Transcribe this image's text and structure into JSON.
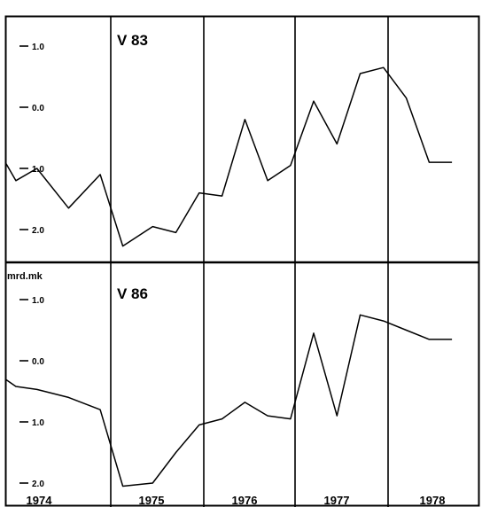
{
  "chart_data": [
    {
      "type": "line",
      "title": "V 83",
      "ylabel": "",
      "y_tick_labels": [
        "1.0",
        "0.0",
        "1.0",
        "2.0"
      ],
      "y_tick_values": [
        1.0,
        0.0,
        -1.0,
        -2.0
      ],
      "ylim": [
        -2.4,
        1.45
      ],
      "x": [
        0.0,
        0.1,
        0.3,
        0.6,
        0.9,
        1.13,
        1.45,
        1.7,
        1.95,
        2.2,
        2.45,
        2.7,
        2.95,
        3.2,
        3.45,
        3.7,
        3.95,
        4.2,
        4.45,
        4.7
      ],
      "y": [
        -0.9,
        -1.2,
        -1.0,
        -1.65,
        -1.1,
        -2.27,
        -1.95,
        -2.05,
        -1.4,
        -1.45,
        -0.2,
        -1.2,
        -0.95,
        0.1,
        -0.6,
        0.55,
        0.65,
        0.15,
        -0.9,
        -0.9
      ],
      "grid": "vertical year dividers",
      "legend": "none"
    },
    {
      "type": "line",
      "title": "V 86",
      "ylabel": "mrd.mk",
      "y_tick_labels": [
        "1.0",
        "0.0",
        "1.0",
        "2.0"
      ],
      "y_tick_values": [
        1.0,
        0.0,
        -1.0,
        -2.0
      ],
      "ylim": [
        -2.4,
        1.45
      ],
      "x": [
        0.0,
        0.1,
        0.3,
        0.6,
        0.9,
        1.13,
        1.45,
        1.7,
        1.95,
        2.2,
        2.45,
        2.7,
        2.95,
        3.2,
        3.45,
        3.7,
        3.95,
        4.2,
        4.45,
        4.7
      ],
      "y": [
        -0.3,
        -0.42,
        -0.47,
        -0.6,
        -0.8,
        -2.05,
        -2.0,
        -1.5,
        -1.05,
        -0.95,
        -0.68,
        -0.9,
        -0.95,
        0.45,
        -0.9,
        0.75,
        0.65,
        0.5,
        0.35,
        0.35
      ],
      "grid": "vertical year dividers",
      "legend": "none"
    }
  ],
  "x_axis": {
    "categories": [
      "1974",
      "1975",
      "1976",
      "1977",
      "1978"
    ],
    "xlim": [
      0.0,
      5.0
    ]
  }
}
